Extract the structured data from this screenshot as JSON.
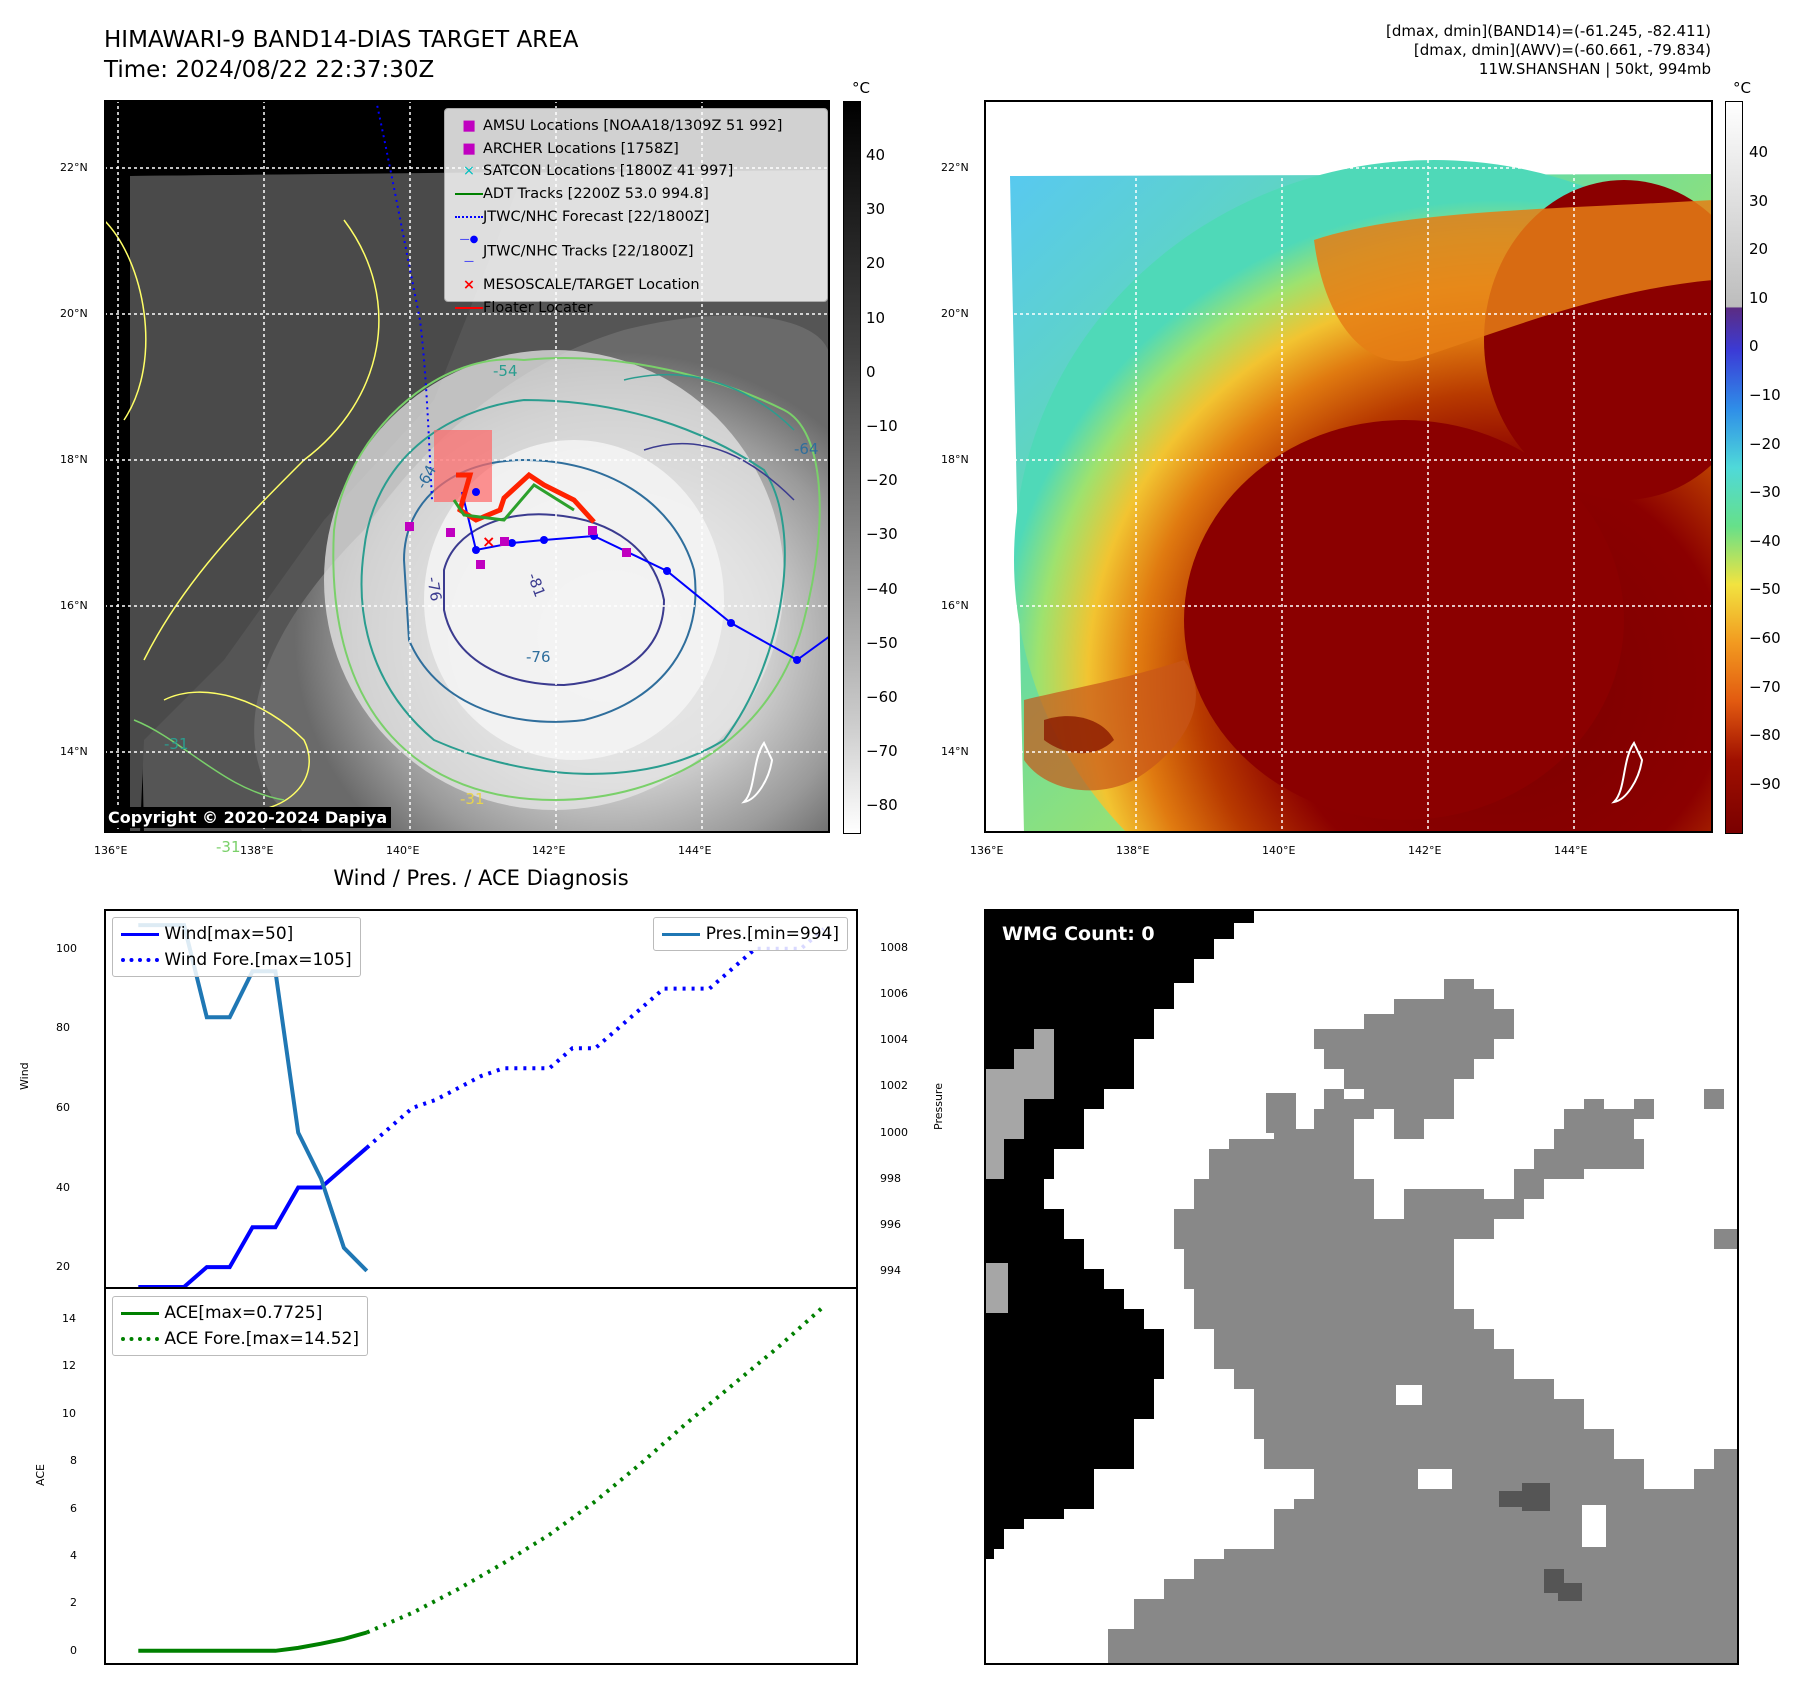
{
  "header": {
    "title_line1": "HIMAWARI-9 BAND14-DIAS TARGET AREA",
    "title_line2": "Time: 2024/08/22 22:37:30Z",
    "info_line1": "[dmax, dmin](BAND14)=(-61.245, -82.411)",
    "info_line2": "[dmax, dmin](AWV)=(-60.661, -79.834)",
    "info_line3": "11W.SHANSHAN | 50kt, 994mb"
  },
  "map": {
    "lat_labels": [
      "22°N",
      "20°N",
      "18°N",
      "16°N",
      "14°N"
    ],
    "lon_labels": [
      "136°E",
      "138°E",
      "140°E",
      "142°E",
      "144°E"
    ],
    "copyright": "Copyright © 2020-2024 Dapiya",
    "contour_labels": [
      "-54",
      "-64",
      "-76",
      "-81",
      "-31",
      "-64",
      "-76",
      "-31",
      "-31"
    ],
    "legend": [
      {
        "label": "AMSU Locations [NOAA18/1309Z 51 992]",
        "color": "#c000c0",
        "marker": "square"
      },
      {
        "label": "ARCHER Locations [1758Z]",
        "color": "#c000c0",
        "marker": "square"
      },
      {
        "label": "SATCON Locations [1800Z 41 997]",
        "color": "#00c0c0",
        "marker": "x"
      },
      {
        "label": "ADT Tracks [2200Z 53.0 994.8]",
        "color": "#008000",
        "marker": "line"
      },
      {
        "label": "JTWC/NHC Forecast [22/1800Z]",
        "color": "#0000ff",
        "marker": "dotted"
      },
      {
        "label": "JTWC/NHC Tracks [22/1800Z]",
        "color": "#0000ff",
        "marker": "line-dot"
      },
      {
        "label": "MESOSCALE/TARGET Location",
        "color": "#ff0000",
        "marker": "x"
      },
      {
        "label": "Floater Locater",
        "color": "#ff0000",
        "marker": "line"
      }
    ]
  },
  "colorbars": {
    "unit": "°C",
    "gray_ticks": [
      "40",
      "30",
      "20",
      "10",
      "0",
      "−10",
      "−20",
      "−30",
      "−40",
      "−50",
      "−60",
      "−70",
      "−80"
    ],
    "color_ticks": [
      "40",
      "30",
      "20",
      "10",
      "0",
      "−10",
      "−20",
      "−30",
      "−40",
      "−50",
      "−60",
      "−70",
      "−80",
      "−90"
    ]
  },
  "diagnosis": {
    "title": "Wind / Pres. / ACE Diagnosis",
    "wind_ylabel": "Wind",
    "pres_ylabel": "Pressure",
    "ace_ylabel": "ACE",
    "wind_ticks": [
      "100",
      "80",
      "60",
      "40",
      "20"
    ],
    "pres_ticks": [
      "1008",
      "1006",
      "1004",
      "1002",
      "1000",
      "998",
      "996",
      "994"
    ],
    "ace_ticks": [
      "14",
      "12",
      "10",
      "8",
      "6",
      "4",
      "2",
      "0"
    ],
    "legend_wind": "Wind[max=50]",
    "legend_wind_fore": "Wind Fore.[max=105]",
    "legend_pres": "Pres.[min=994]",
    "legend_ace": "ACE[max=0.7725]",
    "legend_ace_fore": "ACE Fore.[max=14.52]"
  },
  "wmg": {
    "count_label": "WMG Count: 0"
  },
  "chart_data": [
    {
      "type": "line",
      "panel": "wind-pressure",
      "series": [
        {
          "name": "Wind[max=50]",
          "axis": "left",
          "style": "solid",
          "color": "#0000ff",
          "x": [
            0,
            1,
            2,
            3,
            4,
            5,
            6,
            7,
            8,
            9,
            10
          ],
          "values": [
            15,
            15,
            15,
            20,
            20,
            30,
            30,
            40,
            40,
            45,
            50
          ]
        },
        {
          "name": "Wind Fore.[max=105]",
          "axis": "left",
          "style": "dotted",
          "color": "#0000ff",
          "x": [
            10,
            11,
            12,
            13,
            14,
            15,
            16,
            17,
            18,
            19,
            20,
            21,
            22,
            23,
            24,
            25,
            26,
            27,
            28,
            29,
            30
          ],
          "values": [
            50,
            55,
            60,
            62,
            65,
            68,
            70,
            70,
            70,
            75,
            75,
            80,
            85,
            90,
            90,
            90,
            95,
            100,
            100,
            100,
            105
          ]
        },
        {
          "name": "Pres.[min=994]",
          "axis": "right",
          "style": "solid",
          "color": "#1f77b4",
          "x": [
            0,
            1,
            2,
            3,
            4,
            5,
            6,
            7,
            8,
            9,
            10
          ],
          "values": [
            1009,
            1009,
            1009,
            1005,
            1005,
            1007,
            1007,
            1000,
            998,
            995,
            994
          ]
        }
      ],
      "ylim_left": [
        15,
        110
      ],
      "ylim_right": [
        993.3,
        1009.7
      ]
    },
    {
      "type": "line",
      "panel": "ace",
      "series": [
        {
          "name": "ACE[max=0.7725]",
          "style": "solid",
          "color": "#008000",
          "x": [
            0,
            1,
            2,
            3,
            4,
            5,
            6,
            7,
            8,
            9,
            10
          ],
          "values": [
            0,
            0,
            0,
            0,
            0,
            0,
            0,
            0.12,
            0.3,
            0.5,
            0.77
          ]
        },
        {
          "name": "ACE Fore.[max=14.52]",
          "style": "dotted",
          "color": "#008000",
          "x": [
            10,
            12,
            14,
            16,
            18,
            20,
            22,
            24,
            26,
            28,
            30
          ],
          "values": [
            0.77,
            1.6,
            2.6,
            3.7,
            4.9,
            6.3,
            7.9,
            9.6,
            11.2,
            12.8,
            14.52
          ]
        }
      ],
      "ylim": [
        -0.6,
        15.3
      ]
    }
  ]
}
